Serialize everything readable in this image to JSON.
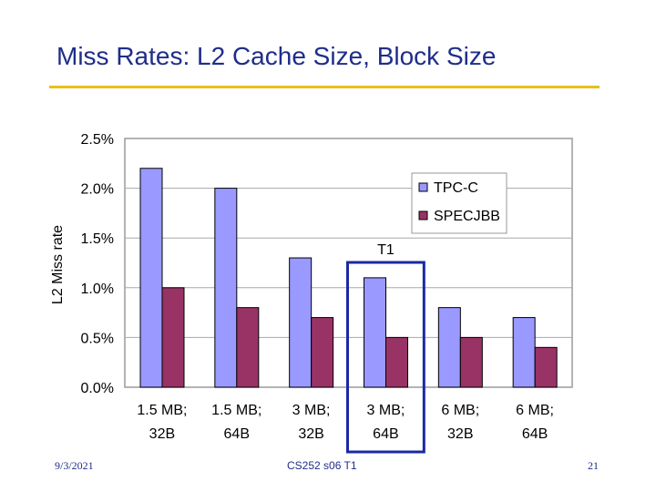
{
  "slide": {
    "title": "Miss Rates: L2 Cache Size, Block Size",
    "footer_date": "9/3/2021",
    "footer_course": "CS252 s06 T1",
    "footer_page": "21"
  },
  "chart_data": {
    "type": "bar",
    "title": "",
    "xlabel": "",
    "ylabel": "L2 Miss rate",
    "categories": [
      [
        "1.5 MB;",
        "32B"
      ],
      [
        "1.5 MB;",
        "64B"
      ],
      [
        "3 MB;",
        "32B"
      ],
      [
        "3 MB;",
        "64B"
      ],
      [
        "6 MB;",
        "32B"
      ],
      [
        "6 MB;",
        "64B"
      ]
    ],
    "series": [
      {
        "name": "TPC-C",
        "values": [
          2.2,
          2.0,
          1.3,
          1.1,
          0.8,
          0.7
        ],
        "color": "#9999ff"
      },
      {
        "name": "SPECJBB",
        "values": [
          1.0,
          0.8,
          0.7,
          0.5,
          0.5,
          0.4
        ],
        "color": "#993366"
      }
    ],
    "ylim": [
      0,
      2.5
    ],
    "yticks": [
      "0.0%",
      "0.5%",
      "1.0%",
      "1.5%",
      "2.0%",
      "2.5%"
    ],
    "ytick_values": [
      0,
      0.5,
      1.0,
      1.5,
      2.0,
      2.5
    ],
    "grid": true,
    "legend_position": "top-right",
    "annotation": {
      "label": "T1",
      "category_index": 3,
      "color": "#1a2aa0"
    }
  }
}
